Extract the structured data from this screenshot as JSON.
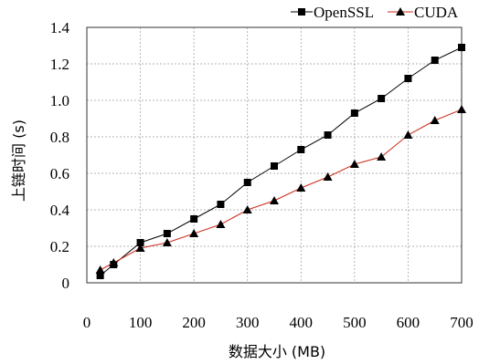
{
  "chart_data": {
    "type": "line",
    "xlabel": "数据大小 (MB)",
    "ylabel": "上链时间 (s)",
    "xlim": [
      0,
      700
    ],
    "ylim": [
      0,
      1.4
    ],
    "xticks": [
      0,
      100,
      200,
      300,
      400,
      500,
      600,
      700
    ],
    "yticks": [
      0,
      0.2,
      0.4,
      0.6,
      0.8,
      1.0,
      1.2,
      1.4
    ],
    "xtick_labels": [
      "0",
      "100",
      "200",
      "300",
      "400",
      "500",
      "600",
      "700"
    ],
    "ytick_labels": [
      "0",
      "0.2",
      "0.4",
      "0.6",
      "0.8",
      "1.0",
      "1.2",
      "1.4"
    ],
    "grid": true,
    "legend_position": "top-right",
    "x": [
      25,
      50,
      100,
      150,
      200,
      250,
      300,
      350,
      400,
      450,
      500,
      550,
      600,
      650,
      700
    ],
    "series": [
      {
        "name": "OpenSSL",
        "marker": "square",
        "color": "#000000",
        "line_color": "#000000",
        "values": [
          0.04,
          0.1,
          0.22,
          0.27,
          0.35,
          0.43,
          0.55,
          0.64,
          0.73,
          0.81,
          0.93,
          1.01,
          1.12,
          1.22,
          1.29
        ]
      },
      {
        "name": "CUDA",
        "marker": "triangle",
        "color": "#000000",
        "line_color": "#cc2a1c",
        "values": [
          0.07,
          0.11,
          0.19,
          0.22,
          0.27,
          0.32,
          0.4,
          0.45,
          0.52,
          0.58,
          0.65,
          0.69,
          0.81,
          0.89,
          0.95
        ]
      }
    ]
  }
}
